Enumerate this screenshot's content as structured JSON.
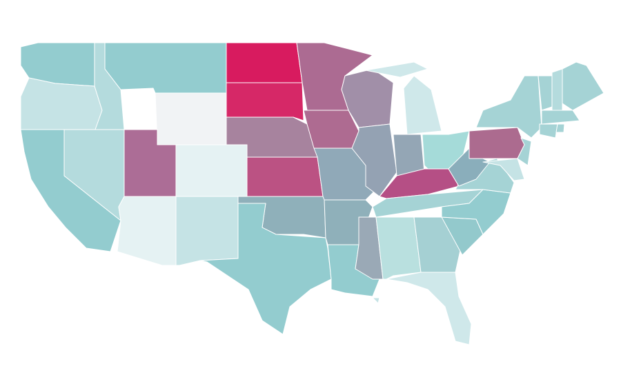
{
  "map": {
    "fills": [
      "#93cccf",
      "#c5e3e5",
      "#93cccf",
      "#b4dbdd",
      "#b4dbdd",
      "#93cccf",
      "#f1f3f5",
      "#ac6d96",
      "#e5f2f3",
      "#e5f2f3",
      "#c5e3e5",
      "#d81b5f",
      "#d62867",
      "#a7839e",
      "#bb5283",
      "#8fb0ba",
      "#93cccf",
      "#ac6b92",
      "#ae6b91",
      "#90a9b8",
      "#8fb0ba",
      "#93cccf",
      "#a18fa8",
      "#94a2b3",
      "#cfe8ea",
      "#cfe8ea",
      "#94a6b5",
      "#a5dbd9",
      "#b54f85",
      "#a5d3d5",
      "#9aa9b6",
      "#b9e0df",
      "#a5d0d3",
      "#cfe8ea",
      "#93c9cc",
      "#93cccf",
      "#a5d3d5",
      "#8aaebb",
      "#ac6b8f",
      "#a5d3d5",
      "#c5e3e5",
      "#a5d3d5",
      "#a5d3d5",
      "#b4dbdd",
      "#a5d3d5",
      "#a5d3d5",
      "#a5d3d5",
      "#a5d3d5",
      "#c5e3e5"
    ]
  }
}
